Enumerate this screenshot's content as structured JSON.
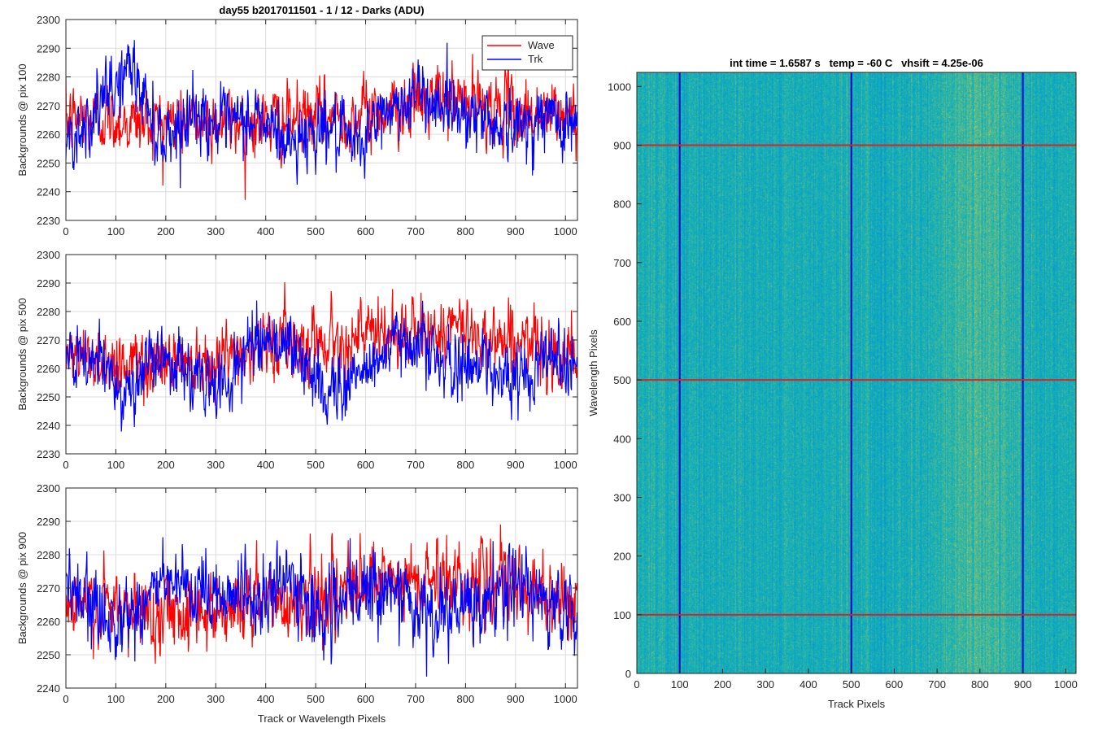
{
  "chart_data": [
    {
      "type": "line",
      "title": "day55 b2017011501 - 1 / 12 - Darks (ADU)",
      "xlabel": "",
      "ylabel": "Backgrounds @ pix 100",
      "xlim": [
        0,
        1024
      ],
      "ylim": [
        2230,
        2300
      ],
      "xticks": [
        0,
        100,
        200,
        300,
        400,
        500,
        600,
        700,
        800,
        900,
        1000
      ],
      "yticks": [
        2230,
        2240,
        2250,
        2260,
        2270,
        2280,
        2290,
        2300
      ],
      "grid": true,
      "legend": "top-right",
      "series": [
        {
          "name": "Wave",
          "color": "#ff0000",
          "x": [
            0,
            64,
            128,
            192,
            256,
            320,
            384,
            448,
            512,
            576,
            640,
            704,
            768,
            832,
            896,
            960,
            1023
          ],
          "values": [
            2265,
            2266,
            2264,
            2265,
            2264,
            2265,
            2264,
            2265,
            2266,
            2266,
            2269,
            2271,
            2272,
            2270,
            2268,
            2267,
            2266
          ]
        },
        {
          "name": "Trk",
          "color": "#0000ff",
          "x": [
            0,
            64,
            128,
            192,
            256,
            320,
            384,
            448,
            512,
            576,
            640,
            704,
            768,
            832,
            896,
            960,
            1023
          ],
          "values": [
            2258,
            2268,
            2284,
            2258,
            2268,
            2262,
            2266,
            2256,
            2264,
            2255,
            2268,
            2274,
            2270,
            2266,
            2262,
            2266,
            2264
          ]
        }
      ]
    },
    {
      "type": "line",
      "title": "",
      "xlabel": "",
      "ylabel": "Backgrounds @ pix 500",
      "xlim": [
        0,
        1024
      ],
      "ylim": [
        2230,
        2300
      ],
      "xticks": [
        0,
        100,
        200,
        300,
        400,
        500,
        600,
        700,
        800,
        900,
        1000
      ],
      "yticks": [
        2230,
        2240,
        2250,
        2260,
        2270,
        2280,
        2290,
        2300
      ],
      "grid": true,
      "series": [
        {
          "name": "Wave",
          "color": "#ff0000",
          "x": [
            0,
            64,
            128,
            192,
            256,
            320,
            384,
            448,
            512,
            576,
            640,
            704,
            768,
            832,
            896,
            960,
            1023
          ],
          "values": [
            2264,
            2263,
            2262,
            2262,
            2264,
            2264,
            2268,
            2270,
            2270,
            2271,
            2272,
            2272,
            2274,
            2272,
            2270,
            2266,
            2265
          ]
        },
        {
          "name": "Trk",
          "color": "#0000ff",
          "x": [
            0,
            64,
            128,
            192,
            256,
            320,
            384,
            448,
            512,
            576,
            640,
            704,
            768,
            832,
            896,
            960,
            1023
          ],
          "values": [
            2262,
            2262,
            2252,
            2266,
            2256,
            2254,
            2272,
            2268,
            2252,
            2256,
            2266,
            2272,
            2258,
            2264,
            2254,
            2266,
            2262
          ]
        }
      ]
    },
    {
      "type": "line",
      "title": "",
      "xlabel": "Track or Wavelength Pixels",
      "ylabel": "Backgrounds @ pix 900",
      "xlim": [
        0,
        1024
      ],
      "ylim": [
        2240,
        2300
      ],
      "xticks": [
        0,
        100,
        200,
        300,
        400,
        500,
        600,
        700,
        800,
        900,
        1000
      ],
      "yticks": [
        2240,
        2250,
        2260,
        2270,
        2280,
        2290,
        2300
      ],
      "grid": true,
      "series": [
        {
          "name": "Wave",
          "color": "#ff0000",
          "x": [
            0,
            64,
            128,
            192,
            256,
            320,
            384,
            448,
            512,
            576,
            640,
            704,
            768,
            832,
            896,
            960,
            1023
          ],
          "values": [
            2264,
            2264,
            2262,
            2264,
            2264,
            2264,
            2266,
            2266,
            2268,
            2270,
            2271,
            2272,
            2273,
            2272,
            2270,
            2268,
            2266
          ]
        },
        {
          "name": "Trk",
          "color": "#0000ff",
          "x": [
            0,
            64,
            128,
            192,
            256,
            320,
            384,
            448,
            512,
            576,
            640,
            704,
            768,
            832,
            896,
            960,
            1023
          ],
          "values": [
            2270,
            2262,
            2262,
            2272,
            2266,
            2270,
            2266,
            2272,
            2262,
            2266,
            2272,
            2262,
            2262,
            2264,
            2272,
            2266,
            2260
          ]
        }
      ]
    },
    {
      "type": "heatmap",
      "title": "int time = 1.6587 s   temp = -60 C   vhsift = 4.25e-06",
      "xlabel": "Track Pixels",
      "ylabel": "Wavelength Pixels",
      "xlim": [
        0,
        1024
      ],
      "ylim": [
        0,
        1024
      ],
      "xticks": [
        0,
        100,
        200,
        300,
        400,
        500,
        600,
        700,
        800,
        900,
        1000
      ],
      "yticks": [
        0,
        100,
        200,
        300,
        400,
        500,
        600,
        700,
        800,
        900,
        1000
      ],
      "colormap": "parula",
      "bright_band_x": [
        700,
        900
      ],
      "vertical_lines": {
        "color": "#0000cc",
        "x": [
          100,
          500,
          900
        ]
      },
      "horizontal_lines": {
        "color": "#dd2222",
        "y": [
          100,
          500,
          900
        ]
      }
    }
  ]
}
